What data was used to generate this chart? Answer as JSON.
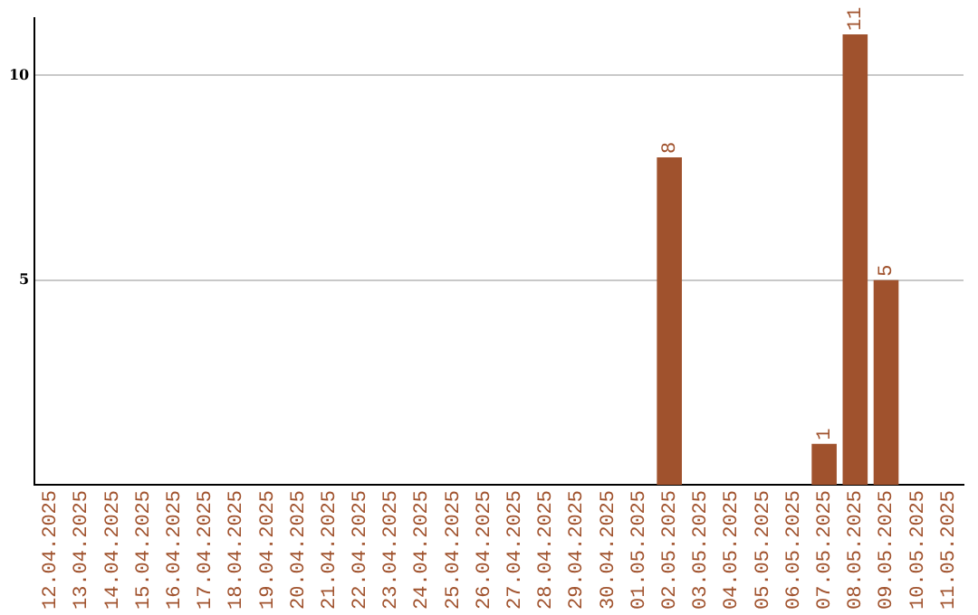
{
  "chart_data": {
    "type": "bar",
    "categories": [
      "12.04.2025",
      "13.04.2025",
      "14.04.2025",
      "15.04.2025",
      "16.04.2025",
      "17.04.2025",
      "18.04.2025",
      "19.04.2025",
      "20.04.2025",
      "21.04.2025",
      "22.04.2025",
      "23.04.2025",
      "24.04.2025",
      "25.04.2025",
      "26.04.2025",
      "27.04.2025",
      "28.04.2025",
      "29.04.2025",
      "30.04.2025",
      "01.05.2025",
      "02.05.2025",
      "03.05.2025",
      "04.05.2025",
      "05.05.2025",
      "06.05.2025",
      "07.05.2025",
      "08.05.2025",
      "09.05.2025",
      "10.05.2025",
      "11.05.2025"
    ],
    "values": [
      0,
      0,
      0,
      0,
      0,
      0,
      0,
      0,
      0,
      0,
      0,
      0,
      0,
      0,
      0,
      0,
      0,
      0,
      0,
      0,
      8,
      0,
      0,
      0,
      0,
      1,
      11,
      5,
      0,
      0
    ],
    "value_labels": [
      null,
      null,
      null,
      null,
      null,
      null,
      null,
      null,
      null,
      null,
      null,
      null,
      null,
      null,
      null,
      null,
      null,
      null,
      null,
      null,
      "8",
      null,
      null,
      null,
      null,
      "1",
      "11",
      "5",
      null,
      null
    ],
    "color": "#a0522d",
    "ylim": [
      0,
      11.4
    ],
    "yticks": [
      5,
      10
    ],
    "grid": "y",
    "legend": false
  }
}
